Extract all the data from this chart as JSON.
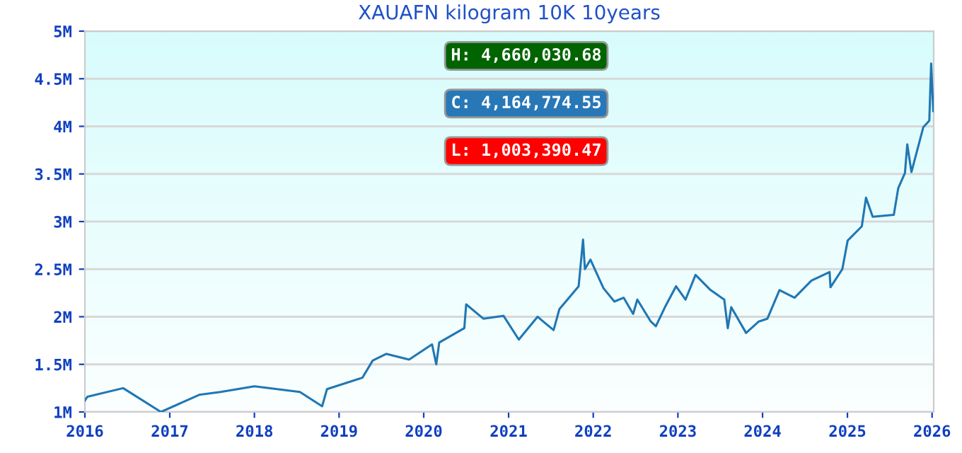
{
  "chart_data": {
    "type": "line",
    "title": "XAUAFN kilogram 10K 10years",
    "x": [
      "2016-01-01",
      "2016-01-12",
      "2016-06-14",
      "2016-11-24",
      "2017-05-08",
      "2017-08-08",
      "2018-01-01",
      "2018-07-16",
      "2018-10-20",
      "2018-11-10",
      "2019-04-12",
      "2019-05-26",
      "2019-07-24",
      "2019-10-30",
      "2020-02-06",
      "2020-02-24",
      "2020-03-08",
      "2020-06-24",
      "2020-07-02",
      "2020-09-14",
      "2020-12-10",
      "2021-02-14",
      "2021-05-06",
      "2021-07-14",
      "2021-08-08",
      "2021-10-30",
      "2021-11-18",
      "2021-11-26",
      "2021-12-20",
      "2022-02-14",
      "2022-04-02",
      "2022-05-12",
      "2022-06-22",
      "2022-07-10",
      "2022-09-06",
      "2022-09-28",
      "2022-11-06",
      "2022-12-24",
      "2023-02-03",
      "2023-03-18",
      "2023-05-22",
      "2023-07-20",
      "2023-08-04",
      "2023-08-19",
      "2023-10-22",
      "2023-12-16",
      "2024-01-22",
      "2024-03-14",
      "2024-05-18",
      "2024-07-30",
      "2024-10-16",
      "2024-10-20",
      "2024-12-10",
      "2025-01-02",
      "2025-03-04",
      "2025-03-22",
      "2025-04-20",
      "2025-07-20",
      "2025-08-08",
      "2025-09-06",
      "2025-09-16",
      "2025-10-04",
      "2025-11-24",
      "2025-12-20",
      "2025-12-28",
      "2026-01-06"
    ],
    "series": [
      {
        "color": "#1f77b4",
        "values": [
          1120000,
          1160000,
          1250000,
          1000000,
          1180000,
          1210000,
          1270000,
          1210000,
          1060000,
          1240000,
          1360000,
          1540000,
          1610000,
          1550000,
          1710000,
          1500000,
          1730000,
          1880000,
          2130000,
          1980000,
          2010000,
          1760000,
          2000000,
          1860000,
          2080000,
          2320000,
          2810000,
          2500000,
          2600000,
          2300000,
          2160000,
          2200000,
          2030000,
          2180000,
          1950000,
          1900000,
          2100000,
          2320000,
          2180000,
          2440000,
          2280000,
          2180000,
          1880000,
          2100000,
          1830000,
          1950000,
          1980000,
          2280000,
          2200000,
          2380000,
          2470000,
          2310000,
          2500000,
          2800000,
          2950000,
          3250000,
          3050000,
          3070000,
          3350000,
          3510000,
          3810000,
          3520000,
          3990000,
          4060000,
          4660000,
          4160000
        ]
      }
    ],
    "xlim": [
      "2016-01-01",
      "2026-01-08"
    ],
    "xticks": [
      {
        "value": "2016-01-01",
        "label": "2016"
      },
      {
        "value": "2017-01-01",
        "label": "2017"
      },
      {
        "value": "2018-01-01",
        "label": "2018"
      },
      {
        "value": "2019-01-01",
        "label": "2019"
      },
      {
        "value": "2020-01-01",
        "label": "2020"
      },
      {
        "value": "2021-01-01",
        "label": "2021"
      },
      {
        "value": "2022-01-01",
        "label": "2022"
      },
      {
        "value": "2023-01-01",
        "label": "2023"
      },
      {
        "value": "2024-01-01",
        "label": "2024"
      },
      {
        "value": "2025-01-01",
        "label": "2025"
      },
      {
        "value": "2026-01-01",
        "label": "2026"
      }
    ],
    "ylim": [
      1000000,
      5000000
    ],
    "yticks": [
      {
        "value": 1000000,
        "label": "1M"
      },
      {
        "value": 1500000,
        "label": "1.5M"
      },
      {
        "value": 2000000,
        "label": "2M"
      },
      {
        "value": 2500000,
        "label": "2.5M"
      },
      {
        "value": 3000000,
        "label": "3M"
      },
      {
        "value": 3500000,
        "label": "3.5M"
      },
      {
        "value": 4000000,
        "label": "4M"
      },
      {
        "value": 4500000,
        "label": "4.5M"
      },
      {
        "value": 5000000,
        "label": "5M"
      }
    ],
    "grid": "y",
    "legend": false,
    "marker": "none",
    "line_style": "solid",
    "annotations": [
      "H: 4,660,030.68",
      "C: 4,164,774.55",
      "L: 1,003,390.47"
    ]
  }
}
